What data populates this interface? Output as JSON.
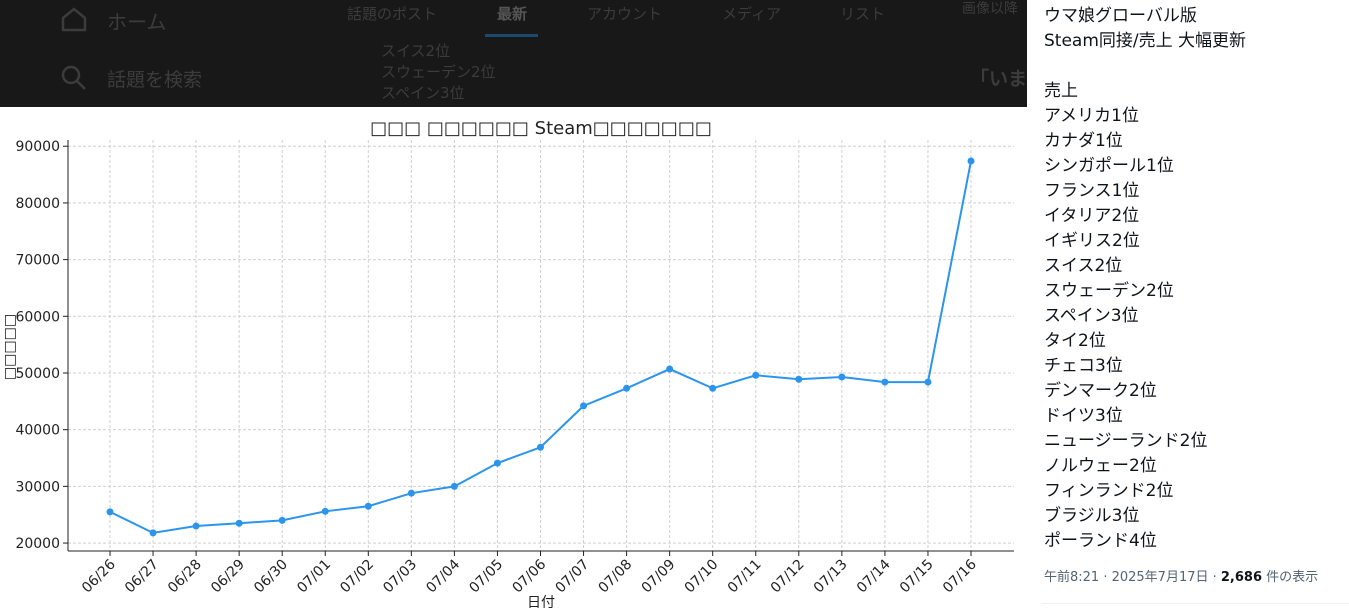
{
  "header": {
    "home": "ホーム",
    "search": "話題を検索",
    "tabs": [
      "話題のポスト",
      "最新",
      "アカウント",
      "メディア",
      "リスト"
    ],
    "overlay_lines": [
      "スイス2位",
      "スウェーデン2位",
      "スペイン3位"
    ],
    "right_snippet": "「いま",
    "right_top": "画像以降"
  },
  "chart_data": {
    "type": "line",
    "title": "□□□ □□□□□□ Steam□□□□□□□",
    "x_label": "日付",
    "y_label": "□□□□□",
    "categories": [
      "06/26",
      "06/27",
      "06/28",
      "06/29",
      "06/30",
      "07/01",
      "07/02",
      "07/03",
      "07/04",
      "07/05",
      "07/06",
      "07/07",
      "07/08",
      "07/09",
      "07/10",
      "07/11",
      "07/12",
      "07/13",
      "07/14",
      "07/15",
      "07/16"
    ],
    "series": [
      {
        "name": "Steam",
        "color": "#2b95ee",
        "values": [
          25500,
          21800,
          23000,
          23500,
          24000,
          25600,
          26500,
          28800,
          30000,
          34100,
          36900,
          44200,
          47300,
          50700,
          47300,
          49600,
          48900,
          49300,
          48400,
          48400,
          87400
        ]
      }
    ],
    "ylim": [
      18600,
      91100
    ],
    "yticks": [
      20000,
      30000,
      40000,
      50000,
      60000,
      70000,
      80000,
      90000
    ],
    "grid": true
  },
  "post": {
    "lines": [
      "ウマ娘グローバル版",
      "Steam同接/売上 大幅更新",
      "売上",
      "アメリカ1位",
      "カナダ1位",
      "シンガポール1位",
      "フランス1位",
      "イタリア2位",
      "イギリス2位",
      "スイス2位",
      "スウェーデン2位",
      "スペイン3位",
      "タイ2位",
      "チェコ3位",
      "デンマーク2位",
      "ドイツ3位",
      "ニュージーランド2位",
      "ノルウェー2位",
      "フィンランド2位",
      "ブラジル3位",
      "ポーランド4位"
    ],
    "meta": "午前8:21 · 2025年7月17日 · ",
    "views": "2,686",
    "views_suffix": " 件の表示"
  }
}
